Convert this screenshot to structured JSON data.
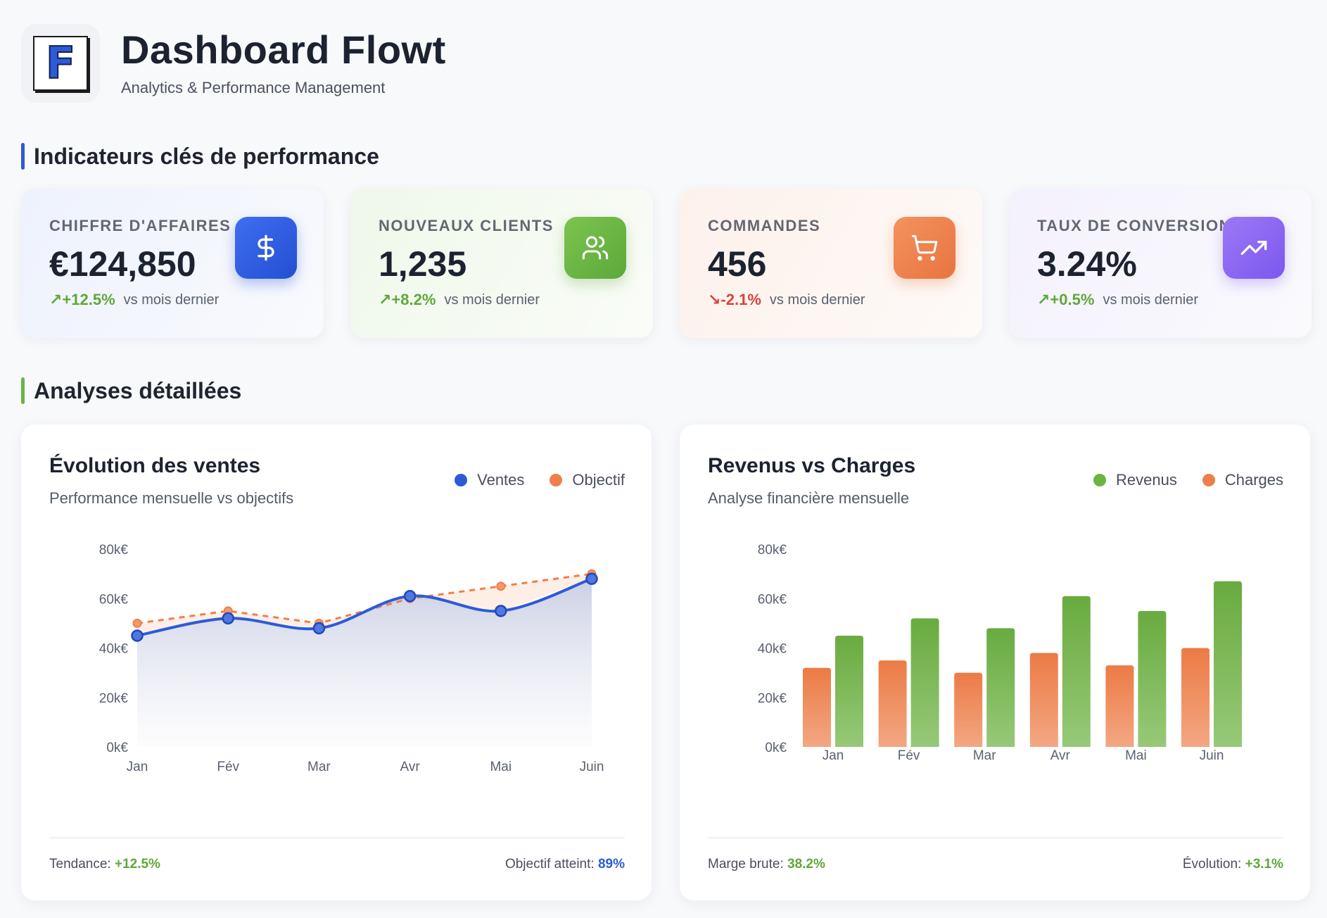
{
  "header": {
    "logo_letter": "F",
    "title": "Dashboard Flowt",
    "subtitle": "Analytics & Performance Management"
  },
  "sections": {
    "kpi_title": "Indicateurs clés de performance",
    "analysis_title": "Analyses détaillées"
  },
  "kpis": [
    {
      "label": "CHIFFRE D'AFFAIRES",
      "value": "€124,850",
      "trend": "↗+12.5%",
      "trend_dir": "up",
      "trend_text": "vs mois dernier",
      "icon": "dollar-icon",
      "color": "#2d5bd8"
    },
    {
      "label": "NOUVEAUX CLIENTS",
      "value": "1,235",
      "trend": "↗+8.2%",
      "trend_dir": "up",
      "trend_text": "vs mois dernier",
      "icon": "users-icon",
      "color": "#6cb443"
    },
    {
      "label": "COMMANDES",
      "value": "456",
      "trend": "↘-2.1%",
      "trend_dir": "down",
      "trend_text": "vs mois dernier",
      "icon": "cart-icon",
      "color": "#ee7f4a"
    },
    {
      "label": "TAUX DE CONVERSION",
      "value": "3.24%",
      "trend": "↗+0.5%",
      "trend_dir": "up",
      "trend_text": "vs mois dernier",
      "icon": "trending-up-icon",
      "color": "#8a66f2"
    }
  ],
  "sales_card": {
    "title": "Évolution des ventes",
    "subtitle": "Performance mensuelle vs objectifs",
    "legend": [
      "Ventes",
      "Objectif"
    ],
    "footer_left_label": "Tendance:",
    "footer_left_value": "+12.5%",
    "footer_right_label": "Objectif atteint:",
    "footer_right_value": "89%"
  },
  "finance_card": {
    "title": "Revenus vs Charges",
    "subtitle": "Analyse financière mensuelle",
    "legend": [
      "Revenus",
      "Charges"
    ],
    "footer_left_label": "Marge brute:",
    "footer_left_value": "38.2%",
    "footer_right_label": "Évolution:",
    "footer_right_value": "+3.1%"
  },
  "chart_data": [
    {
      "type": "line",
      "title": "Évolution des ventes",
      "x": [
        "Jan",
        "Fév",
        "Mar",
        "Avr",
        "Mai",
        "Juin"
      ],
      "y_ticks": [
        "0k€",
        "20k€",
        "40k€",
        "60k€",
        "80k€"
      ],
      "ylim": [
        0,
        80
      ],
      "series": [
        {
          "name": "Ventes",
          "values": [
            45,
            52,
            48,
            61,
            55,
            68
          ],
          "color": "#2d5bd8"
        },
        {
          "name": "Objectif",
          "values": [
            50,
            55,
            50,
            60,
            65,
            70
          ],
          "color": "#ee7f4a"
        }
      ]
    },
    {
      "type": "bar",
      "title": "Revenus vs Charges",
      "categories": [
        "Jan",
        "Fév",
        "Mar",
        "Avr",
        "Mai",
        "Juin"
      ],
      "y_ticks": [
        "0k€",
        "20k€",
        "40k€",
        "60k€",
        "80k€"
      ],
      "ylim": [
        0,
        80
      ],
      "series": [
        {
          "name": "Charges",
          "values": [
            32,
            35,
            30,
            38,
            33,
            40
          ],
          "color": "#ee7f4a"
        },
        {
          "name": "Revenus",
          "values": [
            45,
            52,
            48,
            61,
            55,
            67
          ],
          "color": "#6cb443"
        }
      ]
    }
  ]
}
